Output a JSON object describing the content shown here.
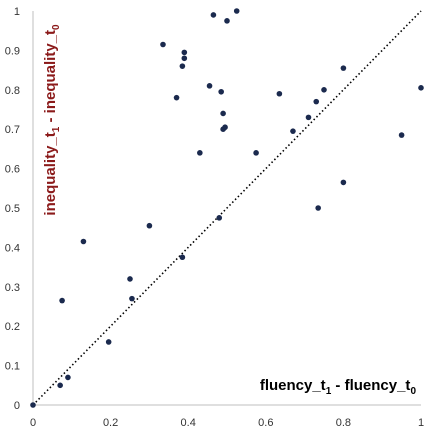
{
  "chart_data": {
    "type": "scatter",
    "xlabel": "fluency_t₁ - fluency_t₀",
    "ylabel": "inequality_t₁ - inequality_t₀",
    "xlabel_parts": {
      "a": "fluency_t",
      "a_sub": "1",
      "b": " - fluency_t",
      "b_sub": "0"
    },
    "ylabel_parts": {
      "a": "inequality_t",
      "a_sub": "1",
      "b": " - inequality_t",
      "b_sub": "0"
    },
    "xlim": [
      0,
      1
    ],
    "ylim": [
      0,
      1
    ],
    "x_ticks": [
      "0",
      "0.2",
      "0.4",
      "0.6",
      "0.8",
      "1"
    ],
    "y_ticks": [
      "0",
      "0.1",
      "0.2",
      "0.3",
      "0.4",
      "0.5",
      "0.6",
      "0.7",
      "0.8",
      "0.9",
      "1"
    ],
    "grid": false,
    "reference_line": {
      "from": [
        0,
        0
      ],
      "to": [
        1,
        1
      ],
      "style": "dotted"
    },
    "colors": {
      "points": "#1b2a4e",
      "ylabel": "#8b1a1a",
      "xlabel": "#000000",
      "axis": "#bfbfbf",
      "diagonal": "#000000"
    },
    "points": [
      {
        "x": 0.0,
        "y": 0.0
      },
      {
        "x": 0.07,
        "y": 0.05
      },
      {
        "x": 0.075,
        "y": 0.265
      },
      {
        "x": 0.09,
        "y": 0.07
      },
      {
        "x": 0.13,
        "y": 0.415
      },
      {
        "x": 0.195,
        "y": 0.16
      },
      {
        "x": 0.25,
        "y": 0.32
      },
      {
        "x": 0.255,
        "y": 0.27
      },
      {
        "x": 0.3,
        "y": 0.455
      },
      {
        "x": 0.335,
        "y": 0.915
      },
      {
        "x": 0.37,
        "y": 0.78
      },
      {
        "x": 0.385,
        "y": 0.86
      },
      {
        "x": 0.39,
        "y": 0.895
      },
      {
        "x": 0.39,
        "y": 0.88
      },
      {
        "x": 0.385,
        "y": 0.375
      },
      {
        "x": 0.43,
        "y": 0.64
      },
      {
        "x": 0.455,
        "y": 0.81
      },
      {
        "x": 0.465,
        "y": 0.99
      },
      {
        "x": 0.48,
        "y": 0.475
      },
      {
        "x": 0.485,
        "y": 0.795
      },
      {
        "x": 0.49,
        "y": 0.74
      },
      {
        "x": 0.49,
        "y": 0.7
      },
      {
        "x": 0.495,
        "y": 0.705
      },
      {
        "x": 0.5,
        "y": 0.975
      },
      {
        "x": 0.525,
        "y": 1.0
      },
      {
        "x": 0.575,
        "y": 0.64
      },
      {
        "x": 0.635,
        "y": 0.79
      },
      {
        "x": 0.67,
        "y": 0.695
      },
      {
        "x": 0.71,
        "y": 0.73
      },
      {
        "x": 0.73,
        "y": 0.77
      },
      {
        "x": 0.735,
        "y": 0.5
      },
      {
        "x": 0.75,
        "y": 0.8
      },
      {
        "x": 0.8,
        "y": 0.855
      },
      {
        "x": 0.8,
        "y": 0.565
      },
      {
        "x": 0.95,
        "y": 0.685
      },
      {
        "x": 1.0,
        "y": 0.805
      }
    ]
  }
}
